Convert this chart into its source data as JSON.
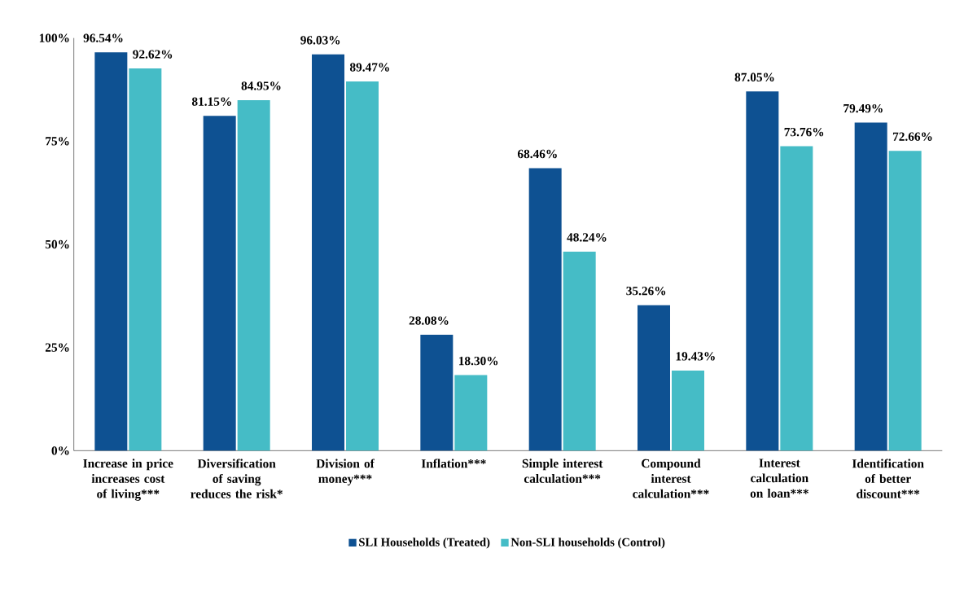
{
  "chart_data": {
    "type": "bar",
    "categories": [
      "Increase in price increases cost of living***",
      "Diversification of saving reduces the risk*",
      "Division of money***",
      "Inflation***",
      "Simple interest calculation***",
      "Compound interest calculation***",
      "Interest calculation on loan***",
      "Identification of better discount***"
    ],
    "series": [
      {
        "name": "SLI Households (Treated)",
        "color": "#0e5192",
        "values": [
          96.54,
          81.15,
          96.03,
          28.08,
          68.46,
          35.26,
          87.05,
          79.49
        ],
        "value_labels": [
          "96.54%",
          "81.15%",
          "96.03%",
          "28.08%",
          "68.46%",
          "35.26%",
          "87.05%",
          "79.49%"
        ]
      },
      {
        "name": "Non-SLI households (Control)",
        "color": "#45bcc6",
        "values": [
          92.62,
          84.95,
          89.47,
          18.3,
          48.24,
          19.43,
          73.76,
          72.66
        ],
        "value_labels": [
          "92.62%",
          "84.95%",
          "89.47%",
          "18.30%",
          "48.24%",
          "19.43%",
          "73.76%",
          "72.66%"
        ]
      }
    ],
    "ylim": [
      0,
      100
    ],
    "yticks": [
      {
        "value": 0,
        "label": "0%"
      },
      {
        "value": 25,
        "label": "25%"
      },
      {
        "value": 50,
        "label": "50%"
      },
      {
        "value": 75,
        "label": "75%"
      },
      {
        "value": 100,
        "label": "100%"
      }
    ],
    "grid": false,
    "legend": "bottom"
  }
}
